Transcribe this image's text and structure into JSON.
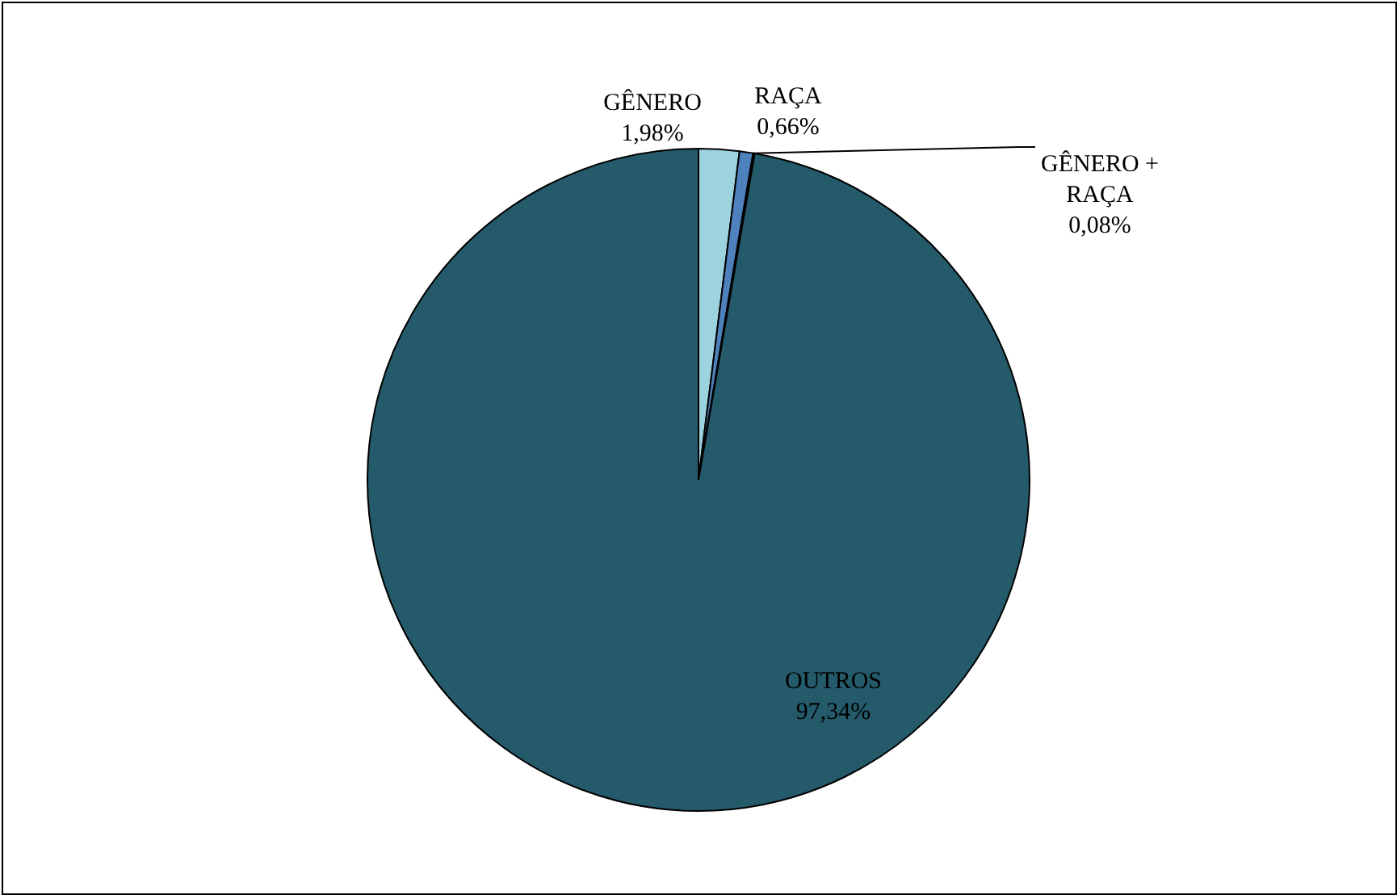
{
  "chart_data": {
    "type": "pie",
    "categories": [
      "GÊNERO",
      "RAÇA",
      "GÊNERO + RAÇA",
      "OUTROS"
    ],
    "values": [
      1.98,
      0.66,
      0.08,
      97.34
    ],
    "colors": [
      "#9dd3df",
      "#4f81bd",
      "#dbeef3",
      "#245a6a"
    ],
    "value_labels": [
      "1,98%",
      "0,66%",
      "0,08%",
      "97,34%"
    ]
  }
}
